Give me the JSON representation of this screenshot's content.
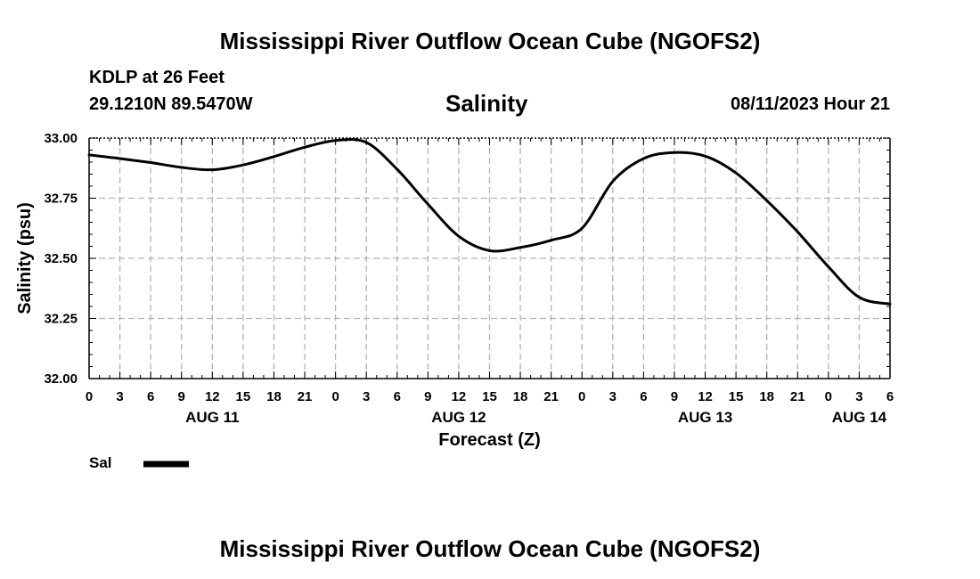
{
  "page": {
    "header_title": "Mississippi River Outflow Ocean Cube (NGOFS2)",
    "footer_title": "Mississippi River Outflow Ocean Cube (NGOFS2)",
    "station_label": "KDLP at 26 Feet",
    "coordinates": "29.1210N  89.5470W",
    "timestamp": "08/11/2023 Hour 21"
  },
  "chart_data": {
    "type": "line",
    "title": "Salinity",
    "xlabel": "Forecast (Z)",
    "ylabel": "Salinity (psu)",
    "x_unit": "forecast hours from 08/11 00Z",
    "xlim": [
      0,
      78
    ],
    "ylim": [
      32.0,
      33.0
    ],
    "yticks": [
      "32.00",
      "32.25",
      "32.50",
      "32.75",
      "33.00"
    ],
    "yticks_values": [
      32.0,
      32.25,
      32.5,
      32.75,
      33.0
    ],
    "xtick_hours": [
      0,
      3,
      6,
      9,
      12,
      15,
      18,
      21,
      24,
      27,
      30,
      33,
      36,
      39,
      42,
      45,
      48,
      51,
      54,
      57,
      60,
      63,
      66,
      69,
      72,
      75,
      78
    ],
    "xtick_labels": [
      "0",
      "3",
      "6",
      "9",
      "12",
      "15",
      "18",
      "21",
      "0",
      "3",
      "6",
      "9",
      "12",
      "15",
      "18",
      "21",
      "0",
      "3",
      "6",
      "9",
      "12",
      "15",
      "18",
      "21",
      "0",
      "3",
      "6"
    ],
    "date_labels": [
      {
        "label": "AUG 11",
        "hour": 12
      },
      {
        "label": "AUG 12",
        "hour": 36
      },
      {
        "label": "AUG 13",
        "hour": 60
      },
      {
        "label": "AUG 14",
        "hour": 75
      }
    ],
    "grid": true,
    "legend": [
      {
        "name": "Sal",
        "color": "#000000"
      }
    ],
    "series": [
      {
        "name": "Sal",
        "color": "#000000",
        "x": [
          0,
          3,
          6,
          9,
          12,
          15,
          18,
          21,
          24,
          27,
          30,
          33,
          36,
          39,
          42,
          45,
          48,
          51,
          54,
          57,
          60,
          63,
          66,
          69,
          72,
          75,
          78
        ],
        "values": [
          32.93,
          32.915,
          32.898,
          32.878,
          32.868,
          32.888,
          32.923,
          32.962,
          32.99,
          32.982,
          32.87,
          32.725,
          32.592,
          32.532,
          32.545,
          32.575,
          32.625,
          32.82,
          32.915,
          32.94,
          32.925,
          32.855,
          32.74,
          32.61,
          32.465,
          32.338,
          32.31
        ]
      }
    ]
  }
}
